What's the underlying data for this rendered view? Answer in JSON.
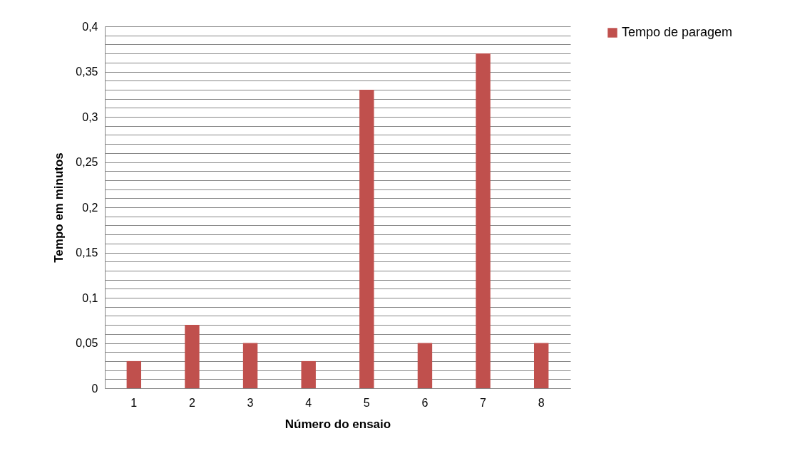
{
  "chart_data": {
    "type": "bar",
    "xlabel": "Número do ensaio",
    "ylabel": "Tempo em minutos",
    "categories": [
      "1",
      "2",
      "3",
      "4",
      "5",
      "6",
      "7",
      "8"
    ],
    "series": [
      {
        "name": "Tempo de paragem",
        "color": "#c0504d",
        "values": [
          0.03,
          0.07,
          0.05,
          0.03,
          0.33,
          0.05,
          0.37,
          0.05
        ]
      }
    ],
    "ylim": [
      0,
      0.4
    ],
    "yticks": [
      0,
      {
        "value": 0.01,
        "label": null
      },
      {
        "value": 0.02,
        "label": null
      },
      {
        "value": 0.03,
        "label": null
      },
      {
        "value": 0.04,
        "label": null
      },
      {
        "value": 0.05,
        "label": "0,05"
      },
      {
        "value": 0.06,
        "label": null
      },
      {
        "value": 0.07,
        "label": null
      },
      {
        "value": 0.08,
        "label": null
      },
      {
        "value": 0.09,
        "label": null
      },
      {
        "value": 0.1,
        "label": "0,1"
      },
      {
        "value": 0.11,
        "label": null
      },
      {
        "value": 0.12,
        "label": null
      },
      {
        "value": 0.13,
        "label": null
      },
      {
        "value": 0.14,
        "label": null
      },
      {
        "value": 0.15,
        "label": "0,15"
      },
      {
        "value": 0.16,
        "label": null
      },
      {
        "value": 0.17,
        "label": null
      },
      {
        "value": 0.18,
        "label": null
      },
      {
        "value": 0.19,
        "label": null
      },
      {
        "value": 0.2,
        "label": "0,2"
      },
      {
        "value": 0.21,
        "label": null
      },
      {
        "value": 0.22,
        "label": null
      },
      {
        "value": 0.23,
        "label": null
      },
      {
        "value": 0.24,
        "label": null
      },
      {
        "value": 0.25,
        "label": "0,25"
      },
      {
        "value": 0.26,
        "label": null
      },
      {
        "value": 0.27,
        "label": null
      },
      {
        "value": 0.28,
        "label": null
      },
      {
        "value": 0.29,
        "label": null
      },
      {
        "value": 0.3,
        "label": "0,3"
      },
      {
        "value": 0.31,
        "label": null
      },
      {
        "value": 0.32,
        "label": null
      },
      {
        "value": 0.33,
        "label": null
      },
      {
        "value": 0.34,
        "label": null
      },
      {
        "value": 0.35,
        "label": "0,35"
      },
      {
        "value": 0.36,
        "label": null
      },
      {
        "value": 0.37,
        "label": null
      },
      {
        "value": 0.38,
        "label": null
      },
      {
        "value": 0.39,
        "label": null
      },
      {
        "value": 0.4,
        "label": "0,4"
      }
    ],
    "grid": "y",
    "legend": "right"
  }
}
